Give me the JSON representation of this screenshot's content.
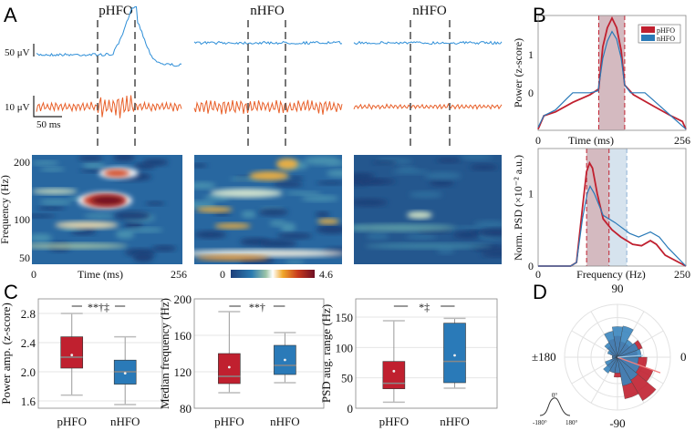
{
  "panels": {
    "a": "A",
    "b": "B",
    "c": "C",
    "d": "D"
  },
  "colors": {
    "phfo": "#c0202f",
    "nhfo": "#2a7ab8",
    "trace_blue": "#2f8fd8",
    "trace_orange": "#e8602a"
  },
  "panel_a": {
    "column_titles": [
      "pHFO",
      "nHFO",
      "nHFO"
    ],
    "scale_top": "50 μV",
    "scale_bottom": "10 μV",
    "scale_time": "50 ms",
    "spec_ylabel": "Frequency (Hz)",
    "spec_yticks": [
      "200",
      "100",
      "50"
    ],
    "spec_x0": "0",
    "spec_xlabel": "Time (ms)",
    "spec_x1": "256",
    "colorbar_min": "0",
    "colorbar_max": "4.6"
  },
  "chart_data": [
    {
      "type": "line",
      "id": "B-top",
      "xlabel": "Time (ms)",
      "ylabel": "Power (z-score)",
      "xticks": [
        "0",
        "256"
      ],
      "yticks": [
        "1",
        "0"
      ],
      "xlim": [
        0,
        256
      ],
      "ylim": [
        -0.98,
        2.02
      ],
      "band": [
        105,
        150
      ],
      "legend": [
        "pHFO",
        "nHFO"
      ],
      "legend_position": "top-right",
      "series": [
        {
          "name": "pHFO",
          "points": [
            [
              0,
              -0.95
            ],
            [
              10,
              -0.6
            ],
            [
              30,
              -0.5
            ],
            [
              60,
              -0.25
            ],
            [
              90,
              -0.05
            ],
            [
              105,
              0.1
            ],
            [
              112,
              1.2
            ],
            [
              120,
              1.7
            ],
            [
              128,
              1.95
            ],
            [
              136,
              1.7
            ],
            [
              144,
              1.1
            ],
            [
              150,
              0.2
            ],
            [
              165,
              -0.05
            ],
            [
              200,
              -0.35
            ],
            [
              230,
              -0.6
            ],
            [
              250,
              -0.75
            ],
            [
              256,
              -0.95
            ]
          ]
        },
        {
          "name": "nHFO",
          "points": [
            [
              0,
              -0.9
            ],
            [
              10,
              -0.6
            ],
            [
              30,
              -0.45
            ],
            [
              50,
              -0.15
            ],
            [
              60,
              0
            ],
            [
              90,
              0
            ],
            [
              104,
              0.05
            ],
            [
              112,
              0.9
            ],
            [
              120,
              1.35
            ],
            [
              128,
              1.6
            ],
            [
              136,
              1.4
            ],
            [
              144,
              0.9
            ],
            [
              150,
              0.2
            ],
            [
              160,
              0
            ],
            [
              185,
              0
            ],
            [
              200,
              -0.2
            ],
            [
              230,
              -0.6
            ],
            [
              256,
              -0.95
            ]
          ]
        }
      ]
    },
    {
      "type": "line",
      "id": "B-bottom",
      "xlabel": "Frequency (Hz)",
      "ylabel": "Norm. PSD (×10⁻² a.u.)",
      "xticks": [
        "0",
        "250"
      ],
      "yticks": [
        "1",
        "0"
      ],
      "xlim": [
        0,
        250
      ],
      "ylim": [
        0,
        1.62
      ],
      "band_phfo": [
        82,
        120
      ],
      "band_nhfo": [
        120,
        150
      ],
      "series": [
        {
          "name": "pHFO",
          "points": [
            [
              0,
              0
            ],
            [
              55,
              0
            ],
            [
              65,
              0.05
            ],
            [
              75,
              0.8
            ],
            [
              82,
              1.3
            ],
            [
              87,
              1.42
            ],
            [
              92,
              1.35
            ],
            [
              100,
              1.0
            ],
            [
              110,
              0.65
            ],
            [
              125,
              0.5
            ],
            [
              140,
              0.4
            ],
            [
              160,
              0.3
            ],
            [
              175,
              0.28
            ],
            [
              190,
              0.35
            ],
            [
              200,
              0.3
            ],
            [
              215,
              0.15
            ],
            [
              250,
              0
            ]
          ]
        },
        {
          "name": "nHFO",
          "points": [
            [
              0,
              0
            ],
            [
              55,
              0
            ],
            [
              65,
              0.05
            ],
            [
              75,
              0.65
            ],
            [
              83,
              1.0
            ],
            [
              88,
              1.1
            ],
            [
              95,
              1.0
            ],
            [
              110,
              0.7
            ],
            [
              130,
              0.6
            ],
            [
              155,
              0.45
            ],
            [
              170,
              0.4
            ],
            [
              190,
              0.47
            ],
            [
              205,
              0.4
            ],
            [
              220,
              0.25
            ],
            [
              250,
              0
            ]
          ]
        }
      ]
    },
    {
      "type": "box",
      "id": "C1",
      "ylabel": "Power amp. (z-score)",
      "categories": [
        "pHFO",
        "nHFO"
      ],
      "ylim": [
        1.5,
        3.0
      ],
      "yticks": [
        "1.6",
        "2.0",
        "2.4",
        "2.8"
      ],
      "ytick_values": [
        1.6,
        2.0,
        2.4,
        2.8
      ],
      "significance": "**†‡",
      "boxes": [
        {
          "min": 1.68,
          "q1": 2.05,
          "median": 2.2,
          "q3": 2.48,
          "max": 2.8,
          "mean": 2.23
        },
        {
          "min": 1.55,
          "q1": 1.83,
          "median": 2.0,
          "q3": 2.16,
          "max": 2.48,
          "mean": 1.98
        }
      ]
    },
    {
      "type": "box",
      "id": "C2",
      "ylabel": "Median frequency (Hz)",
      "categories": [
        "pHFO",
        "nHFO"
      ],
      "ylim": [
        80,
        200
      ],
      "yticks": [
        "80",
        "120",
        "160",
        "200"
      ],
      "ytick_values": [
        80,
        120,
        160,
        200
      ],
      "significance": "**†",
      "boxes": [
        {
          "min": 97,
          "q1": 107,
          "median": 115,
          "q3": 140,
          "max": 186,
          "mean": 125
        },
        {
          "min": 108,
          "q1": 117,
          "median": 127,
          "q3": 149,
          "max": 163,
          "mean": 133
        }
      ]
    },
    {
      "type": "box",
      "id": "C3",
      "ylabel": "PSD aug. range (Hz)",
      "categories": [
        "pHFO",
        "nHFO"
      ],
      "ylim": [
        0,
        180
      ],
      "yticks": [
        "0",
        "50",
        "100",
        "150"
      ],
      "ytick_values": [
        0,
        50,
        100,
        150
      ],
      "significance": "*‡",
      "boxes": [
        {
          "min": 10,
          "q1": 32,
          "median": 41,
          "q3": 77,
          "max": 144,
          "mean": 61
        },
        {
          "min": 33,
          "q1": 42,
          "median": 77,
          "q3": 140,
          "max": 148,
          "mean": 87
        }
      ]
    },
    {
      "type": "polar-histogram",
      "id": "D",
      "angle_labels": {
        "top": "90",
        "left": "±180",
        "right": "0",
        "bottom": "-90"
      },
      "inset_labels": {
        "top": "0°",
        "left": "-180°",
        "right": "180°"
      },
      "bin_centers_deg": [
        -170,
        -150,
        -130,
        -110,
        -90,
        -70,
        -50,
        -30,
        -10,
        10,
        30,
        50,
        70,
        90,
        110,
        130,
        150,
        170
      ],
      "series": [
        {
          "name": "pHFO",
          "values": [
            0.08,
            0.15,
            0.25,
            0.3,
            0.38,
            0.8,
            0.95,
            0.72,
            0.56,
            0.38,
            0.5,
            0.3,
            0.3,
            0.4,
            0.35,
            0.25,
            0.15,
            0.1
          ]
        },
        {
          "name": "nHFO",
          "values": [
            0.1,
            0.25,
            0.35,
            0.3,
            0.3,
            0.55,
            0.5,
            0.45,
            0.4,
            0.45,
            0.42,
            0.38,
            0.6,
            0.58,
            0.5,
            0.32,
            0.2,
            0.1
          ]
        }
      ]
    }
  ]
}
